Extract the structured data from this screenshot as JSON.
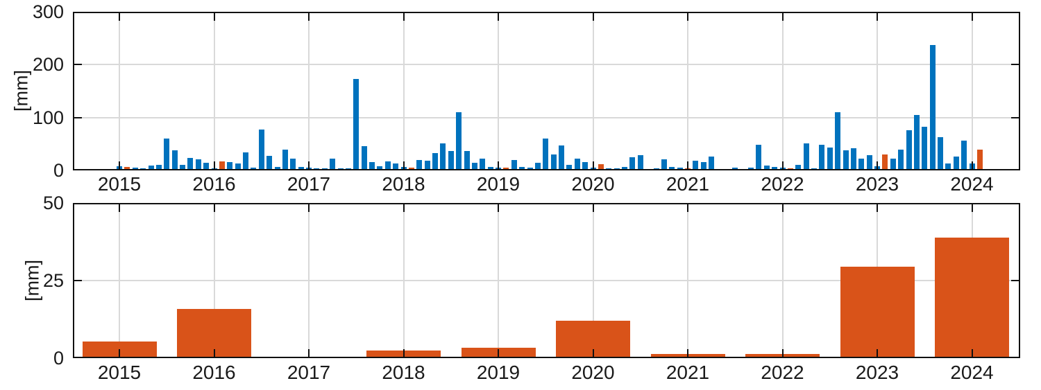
{
  "chart_data": [
    {
      "type": "bar",
      "id": "monthly-precipitation",
      "title": "",
      "xlabel": "",
      "ylabel": "[mm]",
      "ylim": [
        0,
        300
      ],
      "yticks": [
        0,
        100,
        200,
        300
      ],
      "xtick_years": [
        "2015",
        "2016",
        "2017",
        "2018",
        "2019",
        "2020",
        "2021",
        "2022",
        "2023",
        "2024"
      ],
      "grid": true,
      "legend": "none",
      "bar_color_default": "#0072BD",
      "bar_color_highlight": "#D95319",
      "series": [
        {
          "year": "2015",
          "monthly_values": [
            5,
            4,
            2,
            1,
            6,
            8,
            58,
            36,
            8,
            21,
            18,
            12
          ],
          "highlight_months": [
            2
          ]
        },
        {
          "year": "2016",
          "monthly_values": [
            1,
            15,
            13,
            11,
            32,
            2,
            75,
            25,
            4,
            37,
            19,
            4
          ],
          "highlight_months": [
            2
          ]
        },
        {
          "year": "2017",
          "monthly_values": [
            2,
            1,
            1,
            20,
            1,
            1,
            170,
            43,
            13,
            5,
            15,
            10
          ],
          "highlight_months": []
        },
        {
          "year": "2018",
          "monthly_values": [
            4,
            2,
            17,
            16,
            30,
            48,
            34,
            107,
            34,
            12,
            20,
            4
          ],
          "highlight_months": [
            2
          ]
        },
        {
          "year": "2019",
          "monthly_values": [
            2,
            2,
            17,
            4,
            3,
            12,
            58,
            27,
            45,
            8,
            19,
            13
          ],
          "highlight_months": [
            2
          ]
        },
        {
          "year": "2020",
          "monthly_values": [
            3,
            9,
            1,
            1,
            4,
            22,
            26,
            0,
            1,
            18,
            4,
            2
          ],
          "highlight_months": [
            2
          ]
        },
        {
          "year": "2021",
          "monthly_values": [
            1,
            16,
            13,
            24,
            0,
            0,
            3,
            0,
            2,
            46,
            7,
            4
          ],
          "highlight_months": [
            1
          ]
        },
        {
          "year": "2022",
          "monthly_values": [
            2,
            1,
            8,
            49,
            1,
            46,
            40,
            108,
            35,
            39,
            19,
            26
          ],
          "highlight_months": [
            2
          ]
        },
        {
          "year": "2023",
          "monthly_values": [
            5,
            28,
            19,
            37,
            73,
            102,
            80,
            235,
            60,
            10,
            24,
            54
          ],
          "highlight_months": [
            2
          ]
        },
        {
          "year": "2024",
          "monthly_values": [
            10,
            37
          ],
          "highlight_months": [
            2
          ]
        }
      ]
    },
    {
      "type": "bar",
      "id": "annual-highlight-total",
      "title": "",
      "xlabel": "",
      "ylabel": "[mm]",
      "ylim": [
        0,
        50
      ],
      "yticks": [
        0,
        25,
        50
      ],
      "categories": [
        "2015",
        "2016",
        "2017",
        "2018",
        "2019",
        "2020",
        "2021",
        "2022",
        "2023",
        "2024"
      ],
      "values": [
        5,
        15.5,
        0,
        2,
        3,
        11.5,
        1,
        1,
        29,
        38.5
      ],
      "grid": true,
      "legend": "none",
      "bar_color": "#D95319"
    }
  ]
}
